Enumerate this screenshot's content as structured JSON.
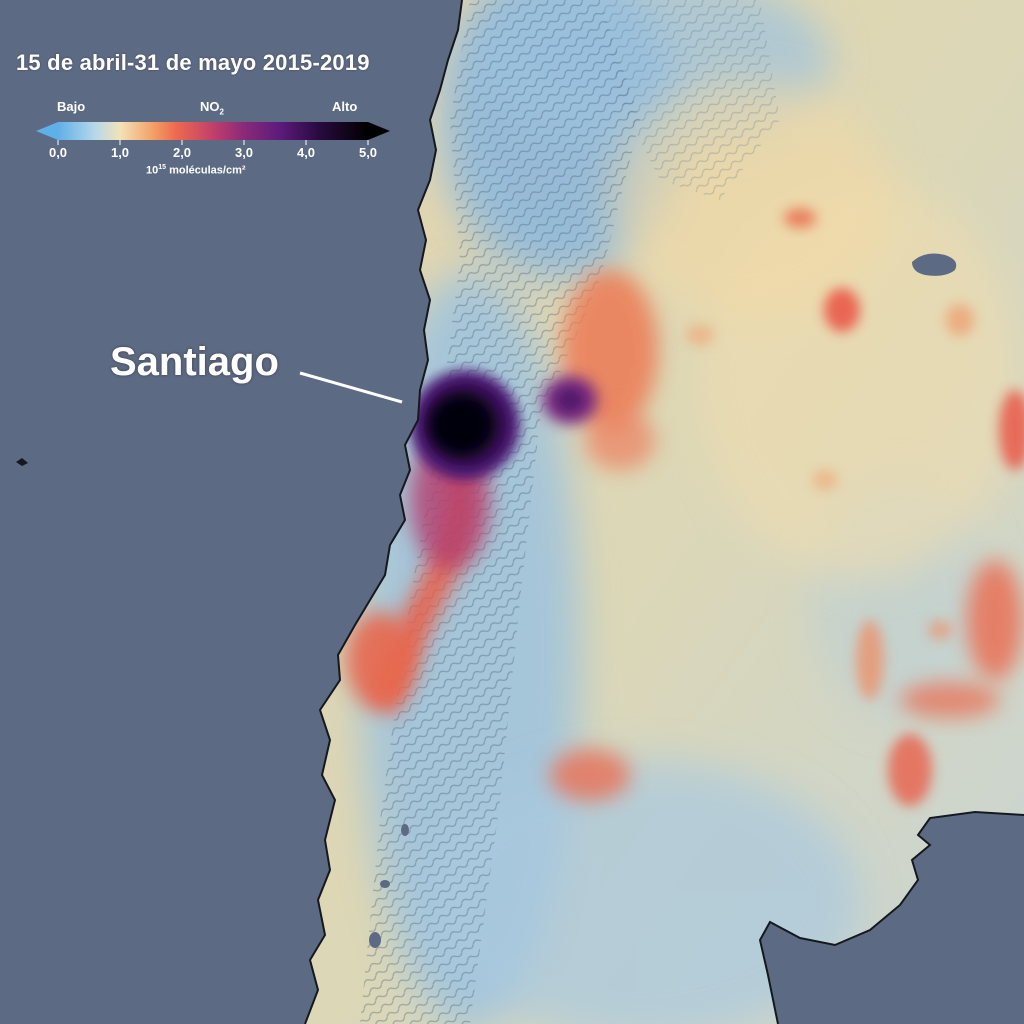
{
  "title": "15 de abril-31 de mayo 2015-2019",
  "legend": {
    "low_label": "Bajo",
    "high_label": "Alto",
    "pollutant": "NO",
    "pollutant_sub": "2",
    "ticks": [
      "0,0",
      "1,0",
      "2,0",
      "3,0",
      "4,0",
      "5,0"
    ],
    "unit_prefix": "10",
    "unit_exp": "15",
    "unit_suffix": " moléculas/cm²",
    "colors": [
      "#5fb0e8",
      "#f3e2b8",
      "#ee6a4e",
      "#9a2a6e",
      "#3b0d55",
      "#000000"
    ]
  },
  "labels": {
    "city": "Santiago"
  },
  "colors": {
    "ocean": "#5d6a83",
    "land_base": "#d8d4b4",
    "mountains": "#8cb4dc",
    "hotspot_core": "#0a0314",
    "hotspot_purple": "#4a1670",
    "plume_orange": "#e95e4a"
  }
}
